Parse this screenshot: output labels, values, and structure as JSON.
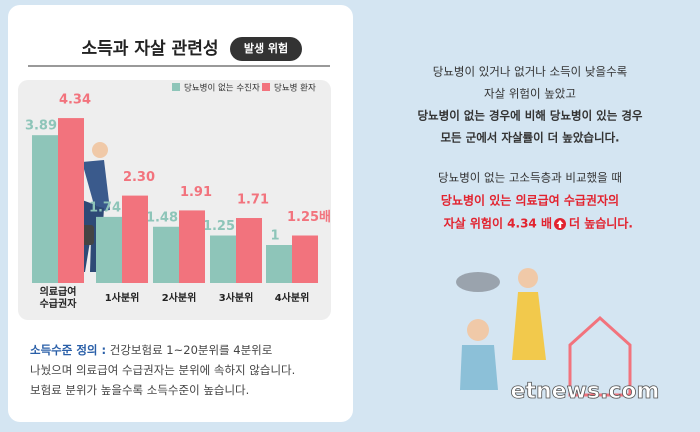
{
  "chart_data": {
    "type": "bar",
    "title": "소득과 자살 관련성",
    "badge": "발생 위험",
    "categories": [
      "의료급여\n수급권자",
      "1사분위",
      "2사분위",
      "3사분위",
      "4사분위"
    ],
    "series": [
      {
        "name": "당뇨병이 없는 수진자",
        "color": "#8ec5b9",
        "values": [
          3.89,
          1.74,
          1.48,
          1.25,
          1
        ]
      },
      {
        "name": "당뇨병 환자",
        "color": "#f2737d",
        "values": [
          4.34,
          2.3,
          1.91,
          1.71,
          1.25
        ],
        "value_labels": [
          "4.34",
          "2.30",
          "1.91",
          "1.71",
          "1.25배"
        ]
      }
    ]
  },
  "definition": {
    "label": "소득수준 정의 :",
    "lines": [
      "건강보험료 1~20분위를 4분위로",
      "나눴으며 의료급여 수급권자는 분위에 속하지 않습니다.",
      "보험료 분위가 높을수록 소득수준이 높습니다."
    ]
  },
  "summary": {
    "para1": [
      "당뇨병이 있거나 없거나 소득이 낮을수록",
      "자살 위험이 높았고",
      "당뇨병이 없는 경우에 비해 당뇨병이 있는 경우",
      "모든 군에서 자살률이 더 높았습니다."
    ],
    "para2": [
      "당뇨병이 없는 고소득층과 비교했을 때",
      "당뇨병이 있는 의료급여 수급권자의",
      "자살 위험이 4.34 배",
      "더 높습니다."
    ]
  },
  "watermark": "etnews.com"
}
